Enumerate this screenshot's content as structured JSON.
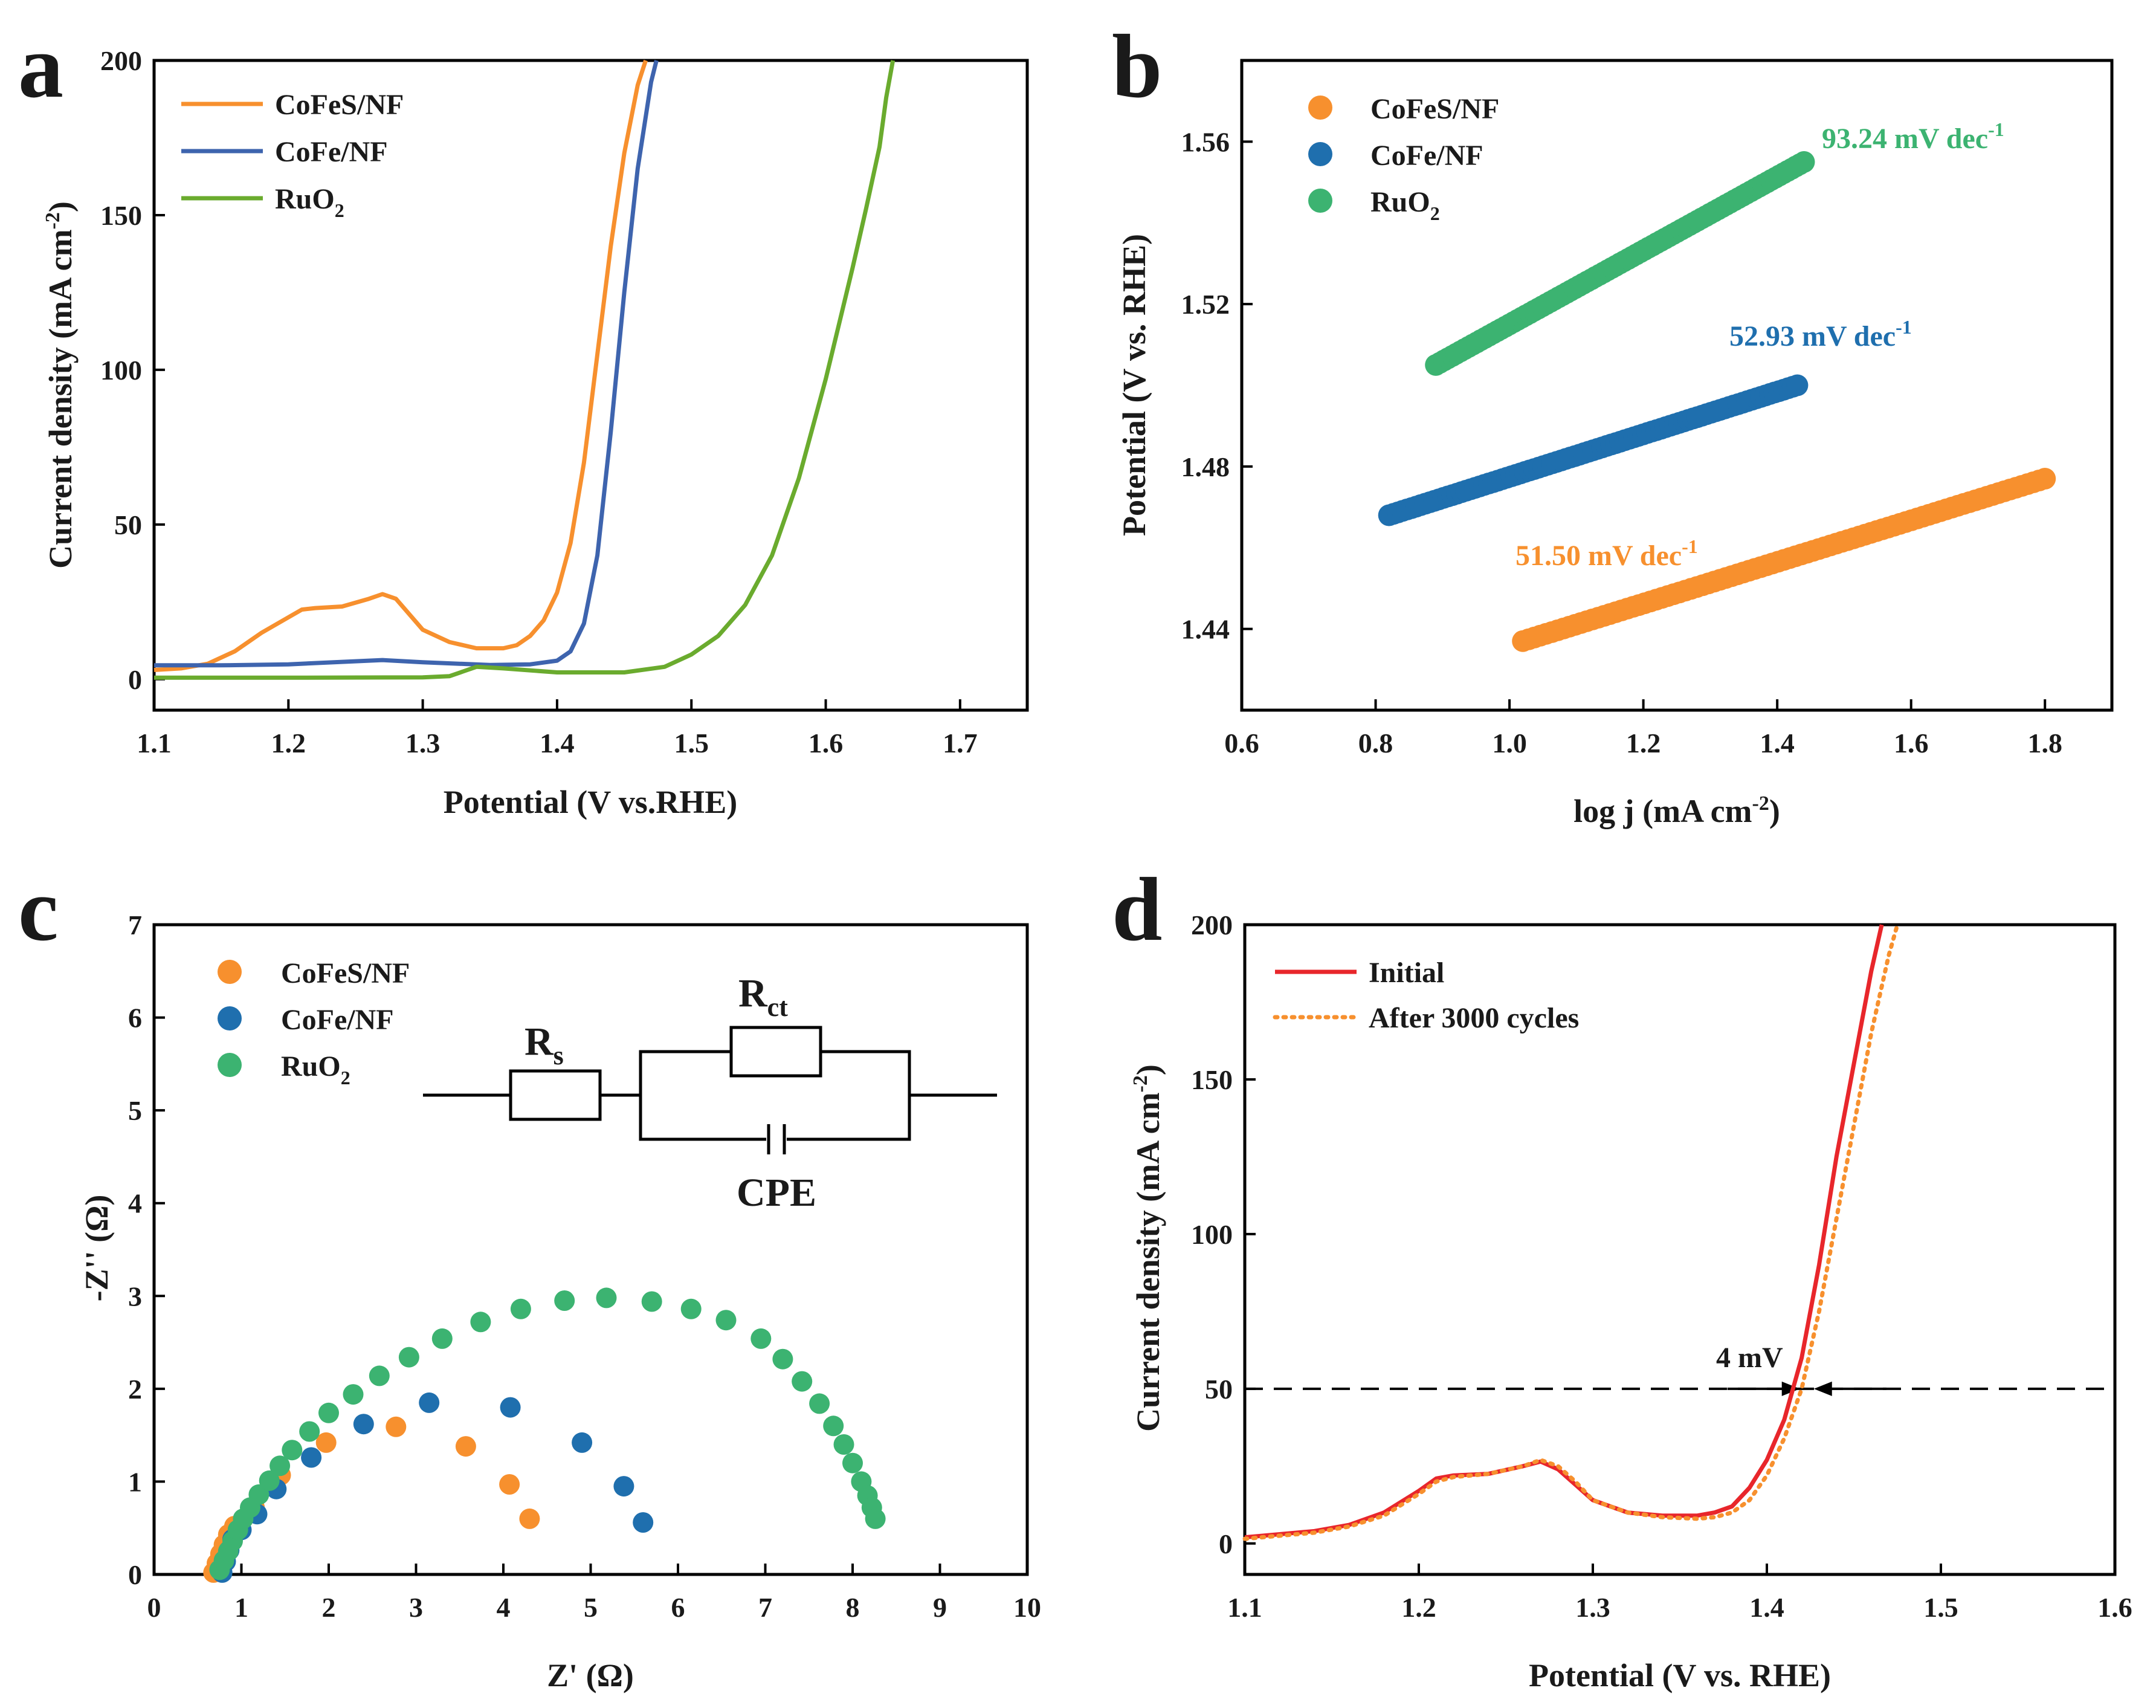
{
  "panels": [
    {
      "id": "a",
      "label": "a",
      "chart_data": {
        "type": "line",
        "xlabel": "Potential (V vs.RHE)",
        "ylabel_main": "Current density (mA cm",
        "ylabel_sup": "-2",
        "ylabel_end": ")",
        "xlim": [
          1.1,
          1.75
        ],
        "ylim": [
          -10,
          200
        ],
        "xticks": [
          1.1,
          1.2,
          1.3,
          1.4,
          1.5,
          1.6,
          1.7
        ],
        "xticklabels": [
          "1.1",
          "1.2",
          "1.3",
          "1.4",
          "1.5",
          "1.6",
          "1.7"
        ],
        "yticks": [
          0,
          50,
          100,
          150,
          200
        ],
        "yticklabels": [
          "0",
          "50",
          "100",
          "150",
          "200"
        ],
        "series": [
          {
            "name": "CoFeS/NF",
            "name_sub": "",
            "color": "#f7902e",
            "x": [
              1.1,
              1.12,
              1.14,
              1.16,
              1.18,
              1.2,
              1.21,
              1.22,
              1.24,
              1.26,
              1.27,
              1.28,
              1.29,
              1.3,
              1.32,
              1.34,
              1.36,
              1.37,
              1.38,
              1.39,
              1.4,
              1.41,
              1.42,
              1.43,
              1.44,
              1.45,
              1.46,
              1.466
            ],
            "y": [
              3,
              3.5,
              5,
              9,
              15,
              20,
              22.5,
              23,
              23.5,
              26,
              27.5,
              26,
              21,
              16,
              12,
              10,
              10,
              11,
              14,
              19,
              28,
              44,
              70,
              105,
              140,
              170,
              192,
              200
            ]
          },
          {
            "name": "CoFe/NF",
            "name_sub": "",
            "color": "#3e64ae",
            "x": [
              1.1,
              1.15,
              1.2,
              1.25,
              1.27,
              1.3,
              1.35,
              1.38,
              1.4,
              1.41,
              1.42,
              1.43,
              1.44,
              1.45,
              1.46,
              1.47,
              1.474
            ],
            "y": [
              4.5,
              4.5,
              4.8,
              5.8,
              6.2,
              5.5,
              4.6,
              4.8,
              6,
              9,
              18,
              40,
              80,
              125,
              165,
              193,
              200
            ]
          },
          {
            "name": "RuO",
            "name_sub": "2",
            "color": "#6aab2e",
            "x": [
              1.1,
              1.2,
              1.3,
              1.32,
              1.33,
              1.34,
              1.36,
              1.4,
              1.45,
              1.48,
              1.5,
              1.52,
              1.54,
              1.56,
              1.58,
              1.6,
              1.61,
              1.62,
              1.63,
              1.64,
              1.645,
              1.65
            ],
            "y": [
              0.5,
              0.5,
              0.6,
              1,
              2.5,
              4,
              3.5,
              2.2,
              2.2,
              4,
              8,
              14,
              24,
              40,
              65,
              97,
              115,
              133,
              152,
              172,
              188,
              200
            ]
          }
        ]
      }
    },
    {
      "id": "b",
      "label": "b",
      "chart_data": {
        "type": "scatter",
        "xlabel_main": "log j (mA cm",
        "xlabel_sup": "-2",
        "xlabel_end": ")",
        "ylabel": "Potential (V vs. RHE)",
        "xlim": [
          0.6,
          1.9
        ],
        "ylim": [
          1.42,
          1.58
        ],
        "xticks": [
          0.6,
          0.8,
          1.0,
          1.2,
          1.4,
          1.6,
          1.8
        ],
        "xticklabels": [
          "0.6",
          "0.8",
          "1.0",
          "1.2",
          "1.4",
          "1.6",
          "1.8"
        ],
        "yticks": [
          1.44,
          1.48,
          1.52,
          1.56
        ],
        "yticklabels": [
          "1.44",
          "1.48",
          "1.52",
          "1.56"
        ],
        "series": [
          {
            "name": "CoFeS/NF",
            "name_sub": "",
            "color": "#f7902e",
            "x_start": 1.02,
            "x_end": 1.8,
            "y_start": 1.437,
            "y_end": 1.477,
            "slope_label": "51.50 mV dec",
            "slope_sup": "-1"
          },
          {
            "name": "CoFe/NF",
            "name_sub": "",
            "color": "#1f6fae",
            "x_start": 0.82,
            "x_end": 1.43,
            "y_start": 1.468,
            "y_end": 1.5,
            "slope_label": "52.93 mV dec",
            "slope_sup": "-1"
          },
          {
            "name": "RuO",
            "name_sub": "2",
            "color": "#3cb371",
            "x_start": 0.89,
            "x_end": 1.44,
            "y_start": 1.505,
            "y_end": 1.555,
            "slope_label": "93.24 mV dec",
            "slope_sup": "-1"
          }
        ]
      }
    },
    {
      "id": "c",
      "label": "c",
      "chart_data": {
        "type": "scatter",
        "xlabel": "Z' (Ω)",
        "ylabel": "-Z'' (Ω)",
        "xlim": [
          0,
          10
        ],
        "ylim": [
          0,
          7
        ],
        "xticks": [
          0,
          1,
          2,
          3,
          4,
          5,
          6,
          7,
          8,
          9,
          10
        ],
        "xticklabels": [
          "0",
          "1",
          "2",
          "3",
          "4",
          "5",
          "6",
          "7",
          "8",
          "9",
          "10"
        ],
        "yticks": [
          0,
          1,
          2,
          3,
          4,
          5,
          6,
          7
        ],
        "yticklabels": [
          "0",
          "1",
          "2",
          "3",
          "4",
          "5",
          "6",
          "7"
        ],
        "series": [
          {
            "name": "CoFeS/NF",
            "name_sub": "",
            "color": "#f7902e",
            "points": [
              [
                0.68,
                0.02
              ],
              [
                0.72,
                0.12
              ],
              [
                0.76,
                0.22
              ],
              [
                0.8,
                0.32
              ],
              [
                0.85,
                0.43
              ],
              [
                0.92,
                0.52
              ],
              [
                1.15,
                0.72
              ],
              [
                1.45,
                1.07
              ],
              [
                1.97,
                1.42
              ],
              [
                2.77,
                1.59
              ],
              [
                3.57,
                1.38
              ],
              [
                4.07,
                0.97
              ],
              [
                4.3,
                0.6
              ]
            ]
          },
          {
            "name": "CoFe/NF",
            "name_sub": "",
            "color": "#1f6fae",
            "points": [
              [
                0.78,
                0.02
              ],
              [
                0.82,
                0.14
              ],
              [
                0.86,
                0.26
              ],
              [
                0.9,
                0.38
              ],
              [
                1.0,
                0.48
              ],
              [
                1.18,
                0.65
              ],
              [
                1.4,
                0.92
              ],
              [
                1.8,
                1.26
              ],
              [
                2.4,
                1.62
              ],
              [
                3.15,
                1.85
              ],
              [
                4.08,
                1.8
              ],
              [
                4.9,
                1.42
              ],
              [
                5.38,
                0.95
              ],
              [
                5.6,
                0.56
              ]
            ]
          },
          {
            "name": "RuO",
            "name_sub": "2",
            "color": "#3cb371",
            "points": [
              [
                0.75,
                0.05
              ],
              [
                0.8,
                0.15
              ],
              [
                0.85,
                0.25
              ],
              [
                0.9,
                0.36
              ],
              [
                0.96,
                0.48
              ],
              [
                1.02,
                0.6
              ],
              [
                1.1,
                0.72
              ],
              [
                1.2,
                0.86
              ],
              [
                1.32,
                1.01
              ],
              [
                1.44,
                1.17
              ],
              [
                1.58,
                1.34
              ],
              [
                1.78,
                1.54
              ],
              [
                2.0,
                1.74
              ],
              [
                2.28,
                1.94
              ],
              [
                2.58,
                2.14
              ],
              [
                2.92,
                2.34
              ],
              [
                3.3,
                2.54
              ],
              [
                3.74,
                2.72
              ],
              [
                4.2,
                2.86
              ],
              [
                4.7,
                2.95
              ],
              [
                5.18,
                2.98
              ],
              [
                5.7,
                2.94
              ],
              [
                6.15,
                2.86
              ],
              [
                6.55,
                2.74
              ],
              [
                6.95,
                2.54
              ],
              [
                7.2,
                2.32
              ],
              [
                7.42,
                2.08
              ],
              [
                7.62,
                1.84
              ],
              [
                7.78,
                1.6
              ],
              [
                7.9,
                1.4
              ],
              [
                8.0,
                1.2
              ],
              [
                8.1,
                1.0
              ],
              [
                8.17,
                0.85
              ],
              [
                8.22,
                0.72
              ],
              [
                8.26,
                0.6
              ]
            ]
          }
        ],
        "circuit": {
          "rs_main": "R",
          "rs_sub": "s",
          "rct_main": "R",
          "rct_sub": "ct",
          "cpe": "CPE"
        }
      }
    },
    {
      "id": "d",
      "label": "d",
      "chart_data": {
        "type": "line",
        "xlabel": "Potential (V vs. RHE)",
        "ylabel_main": "Current density (mA cm",
        "ylabel_sup": "-2",
        "ylabel_end": ")",
        "xlim": [
          1.1,
          1.6
        ],
        "ylim": [
          -10,
          200
        ],
        "xticks": [
          1.1,
          1.2,
          1.3,
          1.4,
          1.5,
          1.6
        ],
        "xticklabels": [
          "1.1",
          "1.2",
          "1.3",
          "1.4",
          "1.5",
          "1.6"
        ],
        "yticks": [
          0,
          50,
          100,
          150,
          200
        ],
        "yticklabels": [
          "0",
          "50",
          "100",
          "150",
          "200"
        ],
        "reference_y": 50,
        "annotation": "4 mV",
        "series": [
          {
            "name": "Initial",
            "color": "#e8262b",
            "style": "solid",
            "x": [
              1.1,
              1.12,
              1.14,
              1.16,
              1.18,
              1.2,
              1.21,
              1.22,
              1.24,
              1.26,
              1.27,
              1.28,
              1.29,
              1.3,
              1.32,
              1.34,
              1.36,
              1.37,
              1.38,
              1.39,
              1.4,
              1.41,
              1.42,
              1.43,
              1.44,
              1.45,
              1.46,
              1.466
            ],
            "y": [
              2,
              3,
              4,
              6,
              10,
              17,
              21,
              22,
              22.5,
              25,
              26.5,
              24,
              19,
              14,
              10,
              9,
              9,
              10,
              12,
              18,
              27,
              40,
              60,
              90,
              125,
              155,
              185,
              200
            ]
          },
          {
            "name": "After 3000 cycles",
            "color": "#f7902e",
            "style": "dotted",
            "x": [
              1.1,
              1.12,
              1.14,
              1.16,
              1.18,
              1.2,
              1.21,
              1.22,
              1.24,
              1.26,
              1.27,
              1.28,
              1.29,
              1.3,
              1.32,
              1.34,
              1.36,
              1.37,
              1.38,
              1.39,
              1.4,
              1.41,
              1.42,
              1.43,
              1.44,
              1.45,
              1.46,
              1.47,
              1.475
            ],
            "y": [
              1.5,
              2.5,
              3.5,
              5.5,
              9,
              16,
              20,
              21.5,
              22.5,
              25,
              27,
              25,
              20,
              14,
              10,
              8.5,
              8,
              8.5,
              10,
              14,
              22,
              34,
              50,
              75,
              105,
              135,
              165,
              190,
              200
            ]
          }
        ]
      }
    }
  ]
}
